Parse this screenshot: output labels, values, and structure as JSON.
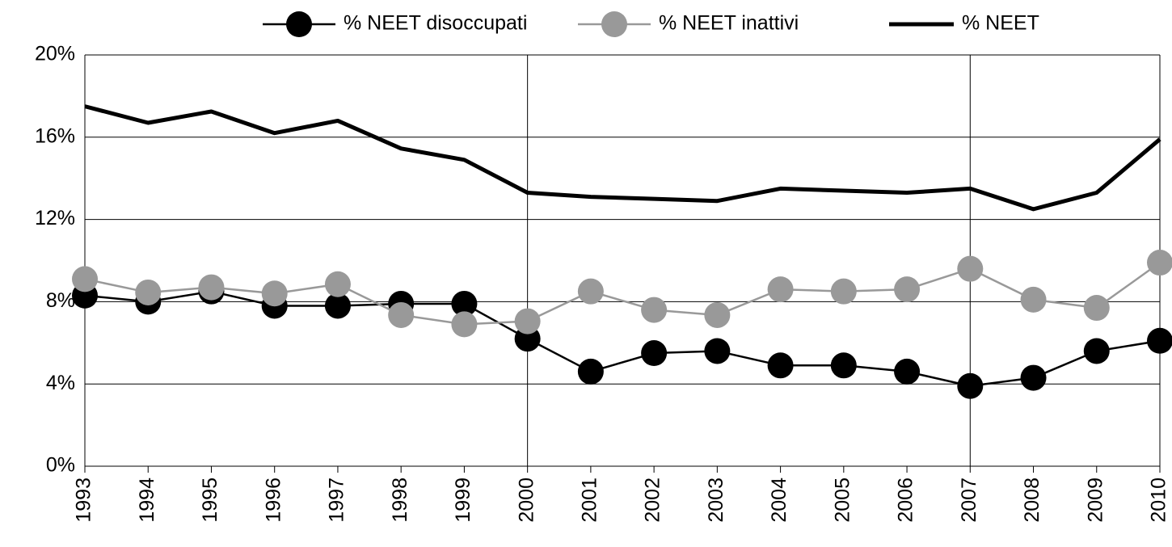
{
  "chart_data": {
    "type": "line",
    "categories": [
      "1993",
      "1994",
      "1995",
      "1996",
      "1997",
      "1998",
      "1999",
      "2000",
      "2001",
      "2002",
      "2003",
      "2004",
      "2005",
      "2006",
      "2007",
      "2008",
      "2009",
      "2010"
    ],
    "series": [
      {
        "name": "% NEET disoccupati",
        "color": "#000000",
        "marker": true,
        "values": [
          8.3,
          8.0,
          8.5,
          7.8,
          7.8,
          7.9,
          7.9,
          6.2,
          4.6,
          5.5,
          5.6,
          4.9,
          4.9,
          4.6,
          3.9,
          4.3,
          5.6,
          6.1
        ]
      },
      {
        "name": "% NEET inattivi",
        "color": "#999999",
        "marker": true,
        "values": [
          9.1,
          8.45,
          8.7,
          8.4,
          8.85,
          7.35,
          6.9,
          7.05,
          8.5,
          7.6,
          7.35,
          8.6,
          8.5,
          8.6,
          9.6,
          8.1,
          7.7,
          9.9
        ]
      },
      {
        "name": "% NEET",
        "color": "#000000",
        "marker": false,
        "values": [
          17.5,
          16.7,
          17.25,
          16.2,
          16.8,
          15.45,
          14.9,
          13.3,
          13.1,
          13.0,
          12.9,
          13.5,
          13.4,
          13.3,
          13.5,
          12.5,
          13.3,
          15.9
        ]
      }
    ],
    "ylim": [
      0,
      20
    ],
    "yticks": [
      {
        "value": 0,
        "label": "0%"
      },
      {
        "value": 4,
        "label": "4%"
      },
      {
        "value": 8,
        "label": "8%"
      },
      {
        "value": 12,
        "label": "12%"
      },
      {
        "value": 16,
        "label": "16%"
      },
      {
        "value": 20,
        "label": "20%"
      }
    ],
    "grid": true,
    "legend": "top"
  }
}
